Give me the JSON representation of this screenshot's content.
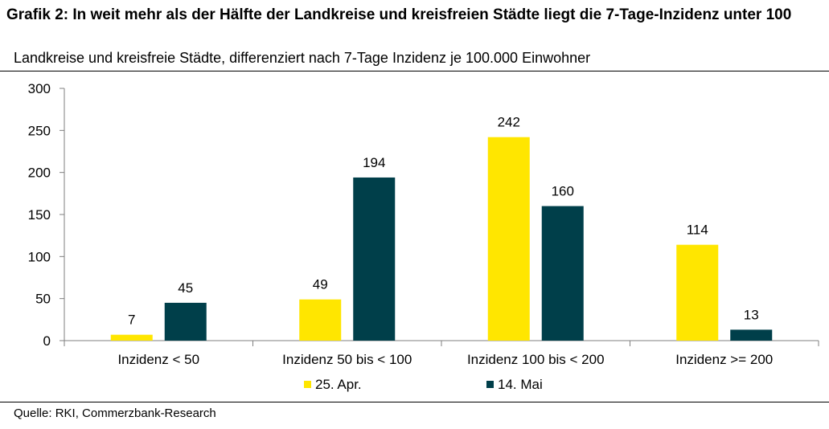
{
  "header": {
    "title": "Grafik 2: In weit mehr als der Hälfte der Landkreise und kreisfreien Städte liegt die 7-Tage-Inzidenz unter 100",
    "subtitle": "Landkreise und kreisfreie Städte, differenziert nach 7-Tage Inzidenz je 100.000 Einwohner"
  },
  "footer": {
    "source": "Quelle: RKI, Commerzbank-Research"
  },
  "colors": {
    "series_1": "#FFE600",
    "series_2": "#003F4A",
    "axis": "#7f7f7f"
  },
  "chart_data": {
    "type": "bar",
    "title": "Grafik 2: In weit mehr als der Hälfte der Landkreise und kreisfreien Städte liegt die 7-Tage-Inzidenz unter 100",
    "subtitle": "Landkreise und kreisfreie Städte, differenziert nach 7-Tage Inzidenz je 100.000 Einwohner",
    "categories": [
      "Inzidenz < 50",
      "Inzidenz 50 bis < 100",
      "Inzidenz 100 bis < 200",
      "Inzidenz >= 200"
    ],
    "series": [
      {
        "name": "25. Apr.",
        "values": [
          7,
          49,
          242,
          114
        ]
      },
      {
        "name": "14. Mai",
        "values": [
          45,
          194,
          160,
          13
        ]
      }
    ],
    "ylim": [
      0,
      300
    ],
    "yticks": [
      0,
      50,
      100,
      150,
      200,
      250,
      300
    ],
    "grid": false,
    "legend": "bottom",
    "data_labels": true
  }
}
